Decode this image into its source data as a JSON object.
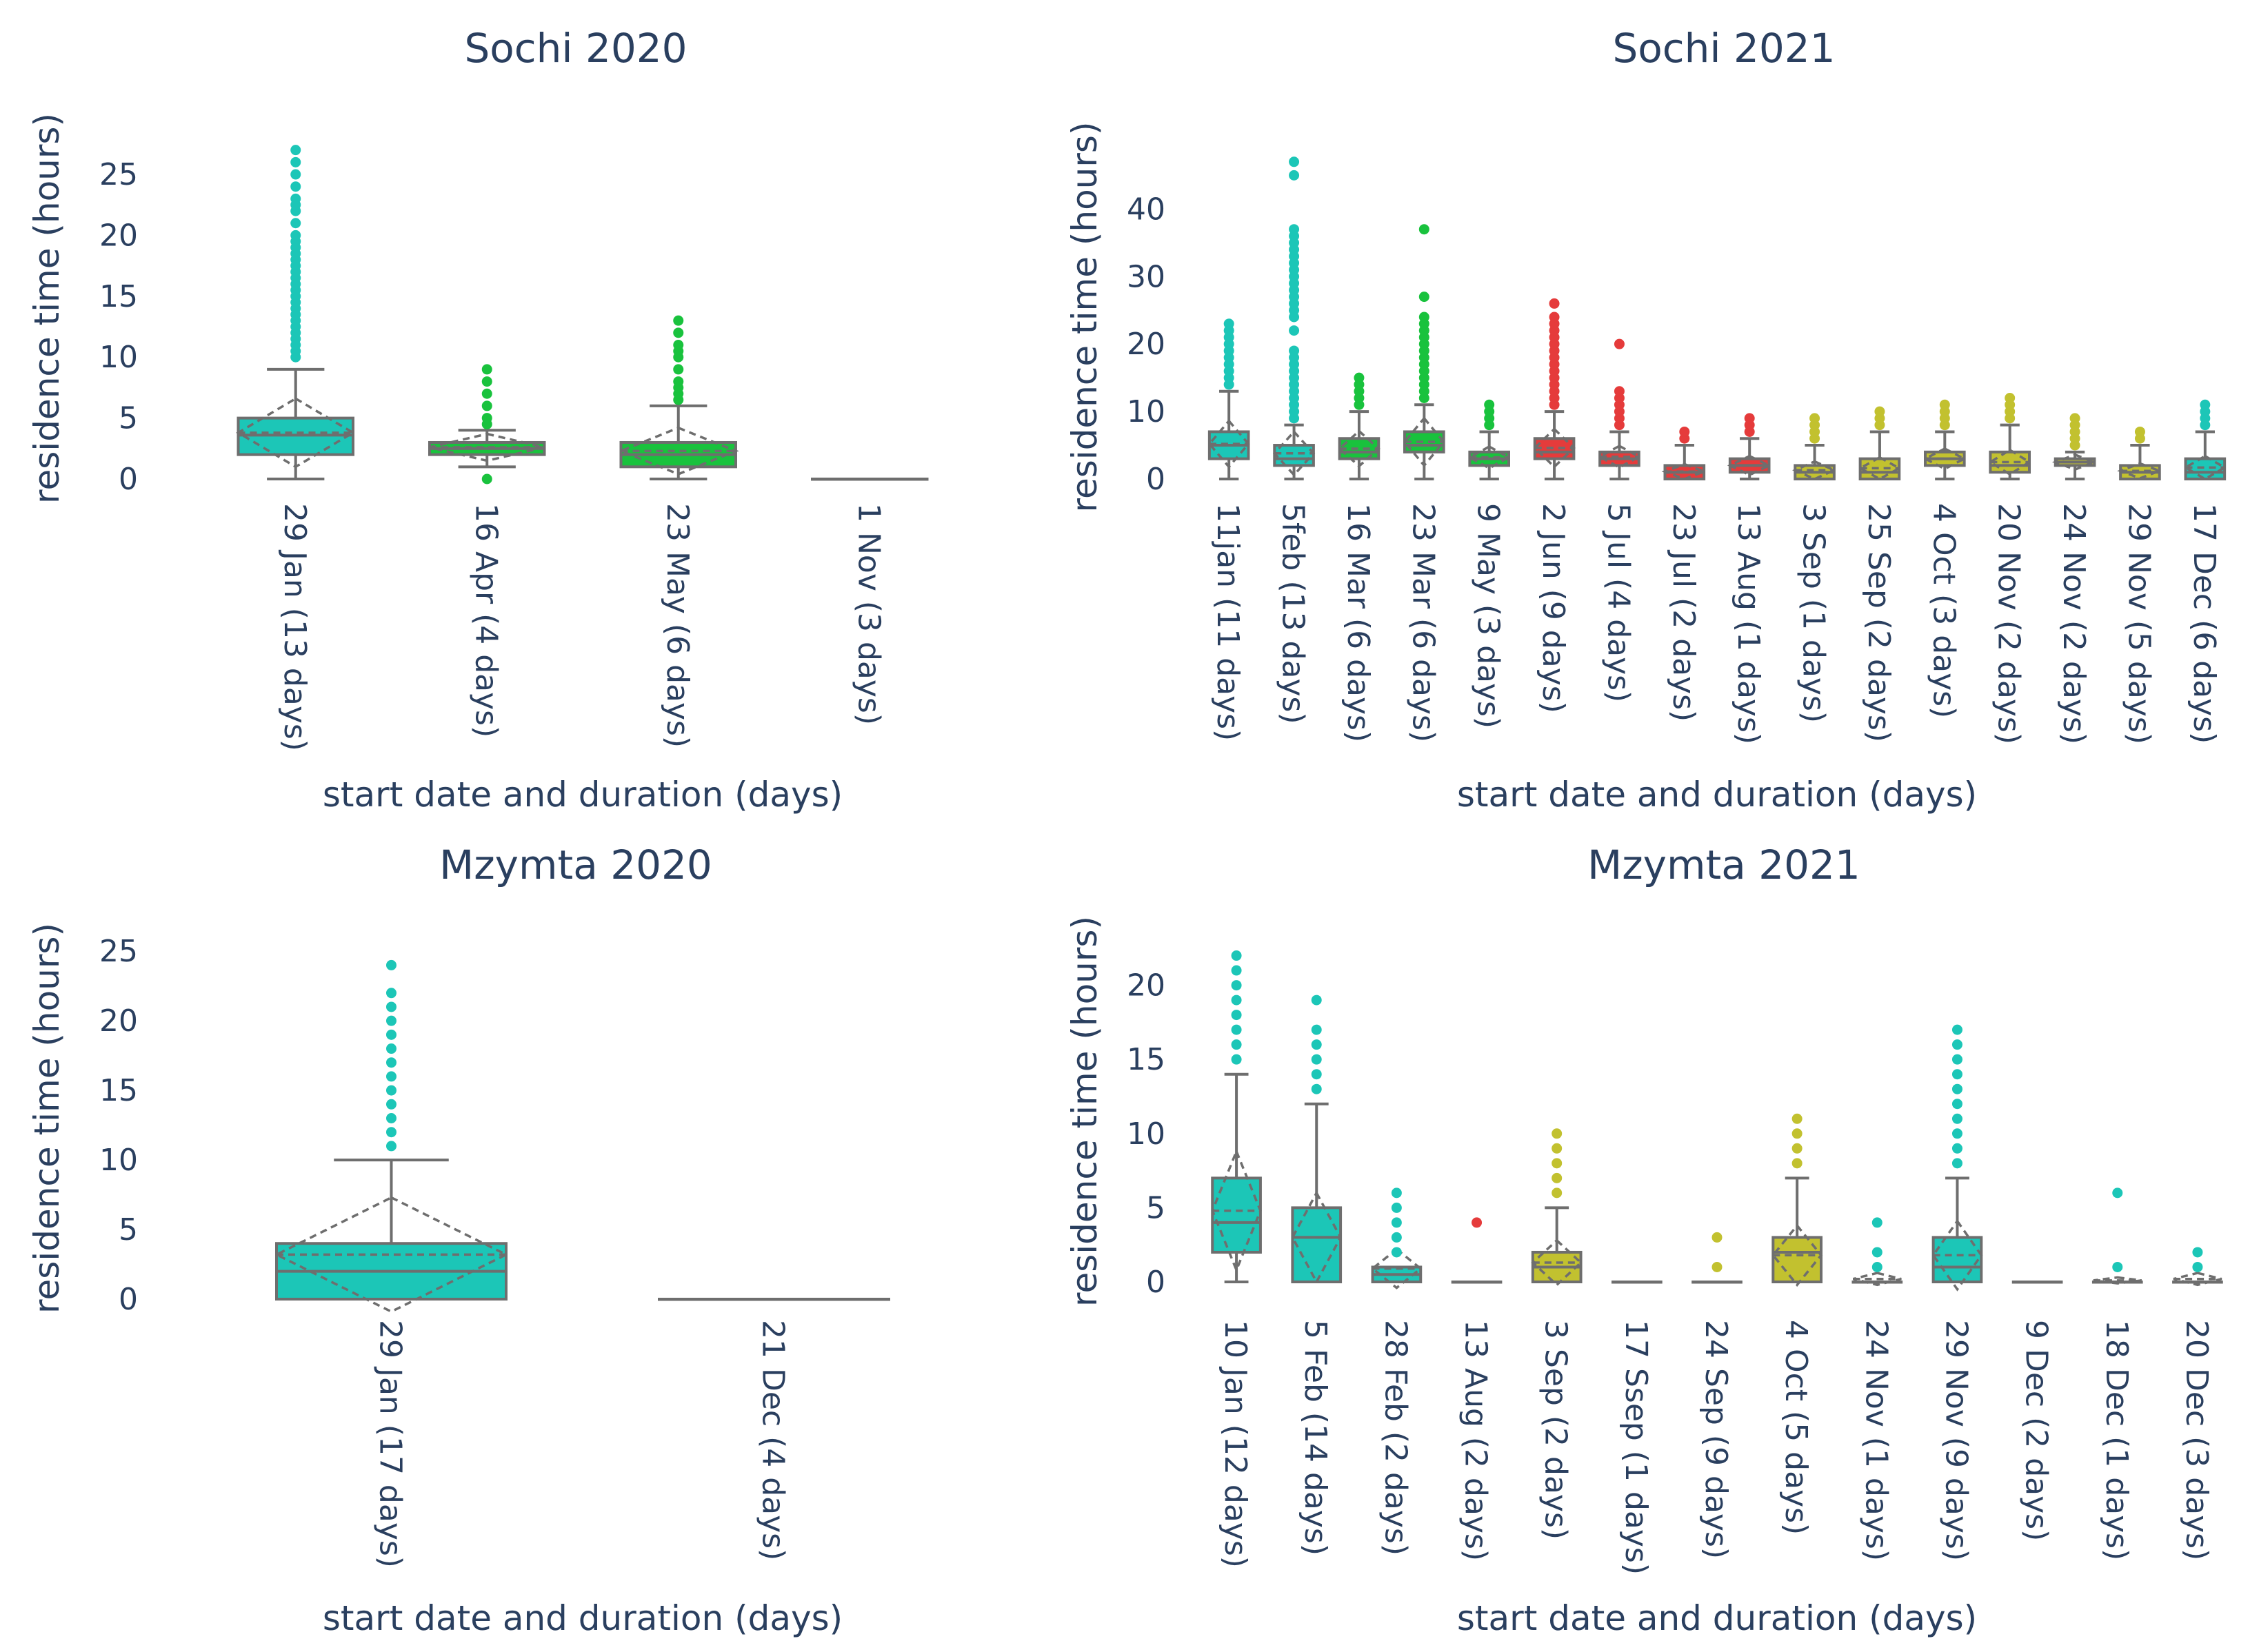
{
  "figure": {
    "text_color": "#2a3f5f",
    "box_line_color": "#6e6e6e",
    "colors": {
      "teal": "#1cc6b7",
      "green": "#19c23d",
      "red": "#e53b3b",
      "olive": "#c2c12f"
    }
  },
  "chart_data": [
    {
      "type": "box",
      "title": "Sochi 2020",
      "xlabel": "start date and duration (days)",
      "ylabel": "residence time (hours)",
      "ylim": [
        -1,
        28
      ],
      "yticks": [
        0,
        5,
        10,
        15,
        20,
        25
      ],
      "categories": [
        "29 Jan (13 days)",
        "16 Apr (4 days)",
        "23 May (6 days)",
        "1 Nov (3 days)"
      ],
      "boxes": [
        {
          "color": "teal",
          "min": 0,
          "q1": 2,
          "median": 3.6,
          "q3": 5,
          "max": 9,
          "mean": 3.8,
          "sd": 2.8,
          "outliers": [
            10,
            10.5,
            11,
            11.5,
            12,
            12.5,
            13,
            13.5,
            14,
            14.5,
            15,
            15.5,
            16,
            16.5,
            17,
            17.5,
            18,
            18.5,
            19,
            19.5,
            20,
            21,
            22,
            22.5,
            23,
            24,
            25,
            26,
            27
          ]
        },
        {
          "color": "green",
          "min": 1,
          "q1": 2,
          "median": 2.5,
          "q3": 3,
          "max": 4,
          "mean": 2.6,
          "sd": 1.1,
          "outliers": [
            0,
            4.5,
            5,
            6,
            7,
            8,
            9
          ]
        },
        {
          "color": "green",
          "min": 0,
          "q1": 1,
          "median": 2,
          "q3": 3,
          "max": 6,
          "mean": 2.3,
          "sd": 1.9,
          "outliers": [
            6.5,
            7,
            7.5,
            8,
            9,
            10,
            10.5,
            11,
            12,
            13
          ]
        },
        {
          "color": "teal",
          "min": 0,
          "q1": 0,
          "median": 0,
          "q3": 0,
          "max": 0,
          "mean": 0,
          "sd": 0,
          "outliers": []
        }
      ]
    },
    {
      "type": "box",
      "title": "Sochi 2021",
      "xlabel": "start date and duration (days)",
      "ylabel": "residence time (hours)",
      "ylim": [
        -2,
        48
      ],
      "yticks": [
        0,
        10,
        20,
        30,
        40
      ],
      "categories": [
        "11jan (11 days)",
        "5feb (13 days)",
        "16 Mar (6 days)",
        "23 Mar (6 days)",
        "9 May (3 days)",
        "2 Jun (9 days)",
        "5 Jul (4 days)",
        "23 Jul (2 days)",
        "13 Aug (1 days)",
        "3 Sep (1 days)",
        "25 Sep (2 days)",
        "4 Oct (3 days)",
        "20 Nov (2 days)",
        "24 Nov (2 days)",
        "29 Nov (5 days)",
        "17 Dec (6 days)"
      ],
      "boxes": [
        {
          "color": "teal",
          "min": 0,
          "q1": 3,
          "median": 5,
          "q3": 7,
          "max": 13,
          "mean": 5.2,
          "sd": 3.4,
          "outliers": [
            14,
            15,
            16,
            17,
            18,
            19,
            20,
            21,
            22,
            23
          ]
        },
        {
          "color": "teal",
          "min": 0,
          "q1": 2,
          "median": 3,
          "q3": 5,
          "max": 8,
          "mean": 3.8,
          "sd": 3.2,
          "outliers": [
            9,
            10,
            11,
            12,
            13,
            14,
            15,
            16,
            17,
            18,
            19,
            22,
            24,
            25,
            26,
            27,
            28,
            29,
            30,
            31,
            32,
            33,
            34,
            35,
            36,
            37,
            45,
            47
          ]
        },
        {
          "color": "green",
          "min": 0,
          "q1": 3,
          "median": 4,
          "q3": 6,
          "max": 10,
          "mean": 4.5,
          "sd": 2.6,
          "outliers": [
            11,
            12,
            13,
            14,
            15
          ]
        },
        {
          "color": "green",
          "min": 0,
          "q1": 4,
          "median": 5,
          "q3": 7,
          "max": 11,
          "mean": 5.5,
          "sd": 3.5,
          "outliers": [
            12,
            13,
            14,
            15,
            16,
            17,
            18,
            19,
            20,
            21,
            22,
            23,
            24,
            27,
            37
          ]
        },
        {
          "color": "green",
          "min": 0,
          "q1": 2,
          "median": 3,
          "q3": 4,
          "max": 7,
          "mean": 3.2,
          "sd": 1.6,
          "outliers": [
            8,
            9,
            10,
            11
          ]
        },
        {
          "color": "red",
          "min": 0,
          "q1": 3,
          "median": 4,
          "q3": 6,
          "max": 10,
          "mean": 4.6,
          "sd": 2.8,
          "outliers": [
            11,
            12,
            13,
            14,
            15,
            16,
            17,
            18,
            19,
            20,
            21,
            22,
            23,
            24,
            26
          ]
        },
        {
          "color": "red",
          "min": 0,
          "q1": 2,
          "median": 3,
          "q3": 4,
          "max": 7,
          "mean": 3.3,
          "sd": 1.6,
          "outliers": [
            8,
            9,
            10,
            11,
            12,
            13,
            20
          ]
        },
        {
          "color": "red",
          "min": 0,
          "q1": 0,
          "median": 1,
          "q3": 2,
          "max": 5,
          "mean": 1.1,
          "sd": 1.1,
          "outliers": [
            6,
            7
          ]
        },
        {
          "color": "red",
          "min": 0,
          "q1": 1,
          "median": 2,
          "q3": 3,
          "max": 6,
          "mean": 2,
          "sd": 1.4,
          "outliers": [
            7,
            8,
            9
          ]
        },
        {
          "color": "olive",
          "min": 0,
          "q1": 0,
          "median": 1,
          "q3": 2,
          "max": 5,
          "mean": 1.3,
          "sd": 1.3,
          "outliers": [
            6,
            7,
            8,
            9
          ]
        },
        {
          "color": "olive",
          "min": 0,
          "q1": 0,
          "median": 1,
          "q3": 3,
          "max": 7,
          "mean": 1.6,
          "sd": 1.6,
          "outliers": [
            8,
            9,
            10
          ]
        },
        {
          "color": "olive",
          "min": 0,
          "q1": 2,
          "median": 3,
          "q3": 4,
          "max": 7,
          "mean": 3,
          "sd": 1.5,
          "outliers": [
            8,
            9,
            10,
            11
          ]
        },
        {
          "color": "olive",
          "min": 0,
          "q1": 1,
          "median": 2,
          "q3": 4,
          "max": 8,
          "mean": 2.5,
          "sd": 1.8,
          "outliers": [
            9,
            10,
            11,
            12
          ]
        },
        {
          "color": "olive",
          "min": 0,
          "q1": 2,
          "median": 2.5,
          "q3": 3,
          "max": 4,
          "mean": 2.5,
          "sd": 1.1,
          "outliers": [
            5,
            6,
            7,
            8,
            9
          ]
        },
        {
          "color": "olive",
          "min": 0,
          "q1": 0,
          "median": 1,
          "q3": 2,
          "max": 5,
          "mean": 1.2,
          "sd": 1.1,
          "outliers": [
            6,
            7
          ]
        },
        {
          "color": "teal",
          "min": 0,
          "q1": 0,
          "median": 1,
          "q3": 3,
          "max": 7,
          "mean": 1.7,
          "sd": 1.7,
          "outliers": [
            8,
            9,
            10,
            11
          ]
        }
      ]
    },
    {
      "type": "box",
      "title": "Mzymta 2020",
      "xlabel": "start date and duration (days)",
      "ylabel": "residence time (hours)",
      "ylim": [
        -1,
        26
      ],
      "yticks": [
        0,
        5,
        10,
        15,
        20,
        25
      ],
      "categories": [
        "29 Jan (17 days)",
        "21 Dec (4 days)"
      ],
      "boxes": [
        {
          "color": "teal",
          "min": 0,
          "q1": 0,
          "median": 2,
          "q3": 4,
          "max": 10,
          "mean": 3.2,
          "sd": 4.1,
          "outliers": [
            11,
            12,
            13,
            14,
            15,
            16,
            17,
            18,
            19,
            20,
            21,
            22,
            24
          ]
        },
        {
          "color": "teal",
          "min": 0,
          "q1": 0,
          "median": 0,
          "q3": 0,
          "max": 0,
          "mean": 0,
          "sd": 0,
          "outliers": []
        }
      ]
    },
    {
      "type": "box",
      "title": "Mzymta 2021",
      "xlabel": "start date and duration (days)",
      "ylabel": "residence time (hours)",
      "ylim": [
        -1,
        23
      ],
      "yticks": [
        0,
        5,
        10,
        15,
        20
      ],
      "categories": [
        "10 Jan (12 days)",
        "5 Feb (14 days)",
        "28 Feb (2 days)",
        "13 Aug (2 days)",
        "3 Sep (2 days)",
        "17 Ssep (1 days)",
        "24 Sep (9 days)",
        "4 Oct (5 days)",
        "24 Nov (1 days)",
        "29 Nov (9 days)",
        "9 Dec (2 days)",
        "18 Dec (1 days)",
        "20 Dec (3 days)"
      ],
      "boxes": [
        {
          "color": "teal",
          "min": 0,
          "q1": 2,
          "median": 4,
          "q3": 7,
          "max": 14,
          "mean": 4.8,
          "sd": 4,
          "outliers": [
            15,
            16,
            17,
            18,
            19,
            20,
            21,
            22
          ]
        },
        {
          "color": "teal",
          "min": 0,
          "q1": 0,
          "median": 3,
          "q3": 5,
          "max": 12,
          "mean": 3,
          "sd": 3,
          "outliers": [
            13,
            14,
            15,
            16,
            17,
            19
          ]
        },
        {
          "color": "teal",
          "min": 0,
          "q1": 0,
          "median": 0.5,
          "q3": 1,
          "max": 1,
          "mean": 0.9,
          "sd": 1.3,
          "outliers": [
            2,
            3,
            4,
            5,
            6
          ]
        },
        {
          "color": "red",
          "min": 0,
          "q1": 0,
          "median": 0,
          "q3": 0,
          "max": 0,
          "mean": 0,
          "sd": 0,
          "outliers": [
            4
          ]
        },
        {
          "color": "olive",
          "min": 0,
          "q1": 0,
          "median": 1,
          "q3": 2,
          "max": 5,
          "mean": 1.3,
          "sd": 1.5,
          "outliers": [
            6,
            7,
            8,
            9,
            10
          ]
        },
        {
          "color": "olive",
          "min": 0,
          "q1": 0,
          "median": 0,
          "q3": 0,
          "max": 0,
          "mean": 0,
          "sd": 0,
          "outliers": []
        },
        {
          "color": "olive",
          "min": 0,
          "q1": 0,
          "median": 0,
          "q3": 0,
          "max": 0,
          "mean": 0,
          "sd": 0,
          "outliers": [
            1,
            3
          ]
        },
        {
          "color": "olive",
          "min": 0,
          "q1": 0,
          "median": 2,
          "q3": 3,
          "max": 7,
          "mean": 1.8,
          "sd": 2,
          "outliers": [
            8,
            9,
            10,
            11
          ]
        },
        {
          "color": "teal",
          "min": 0,
          "q1": 0,
          "median": 0,
          "q3": 0,
          "max": 0,
          "mean": 0.2,
          "sd": 0.4,
          "outliers": [
            1,
            2,
            4
          ]
        },
        {
          "color": "teal",
          "min": 0,
          "q1": 0,
          "median": 1,
          "q3": 3,
          "max": 7,
          "mean": 1.8,
          "sd": 2.3,
          "outliers": [
            8,
            9,
            10,
            11,
            12,
            13,
            14,
            15,
            16,
            17
          ]
        },
        {
          "color": "teal",
          "min": 0,
          "q1": 0,
          "median": 0,
          "q3": 0,
          "max": 0,
          "mean": 0,
          "sd": 0,
          "outliers": []
        },
        {
          "color": "teal",
          "min": 0,
          "q1": 0,
          "median": 0,
          "q3": 0,
          "max": 0,
          "mean": 0.1,
          "sd": 0.2,
          "outliers": [
            1,
            6
          ]
        },
        {
          "color": "teal",
          "min": 0,
          "q1": 0,
          "median": 0,
          "q3": 0,
          "max": 0,
          "mean": 0.2,
          "sd": 0.4,
          "outliers": [
            1,
            2
          ]
        }
      ]
    }
  ]
}
